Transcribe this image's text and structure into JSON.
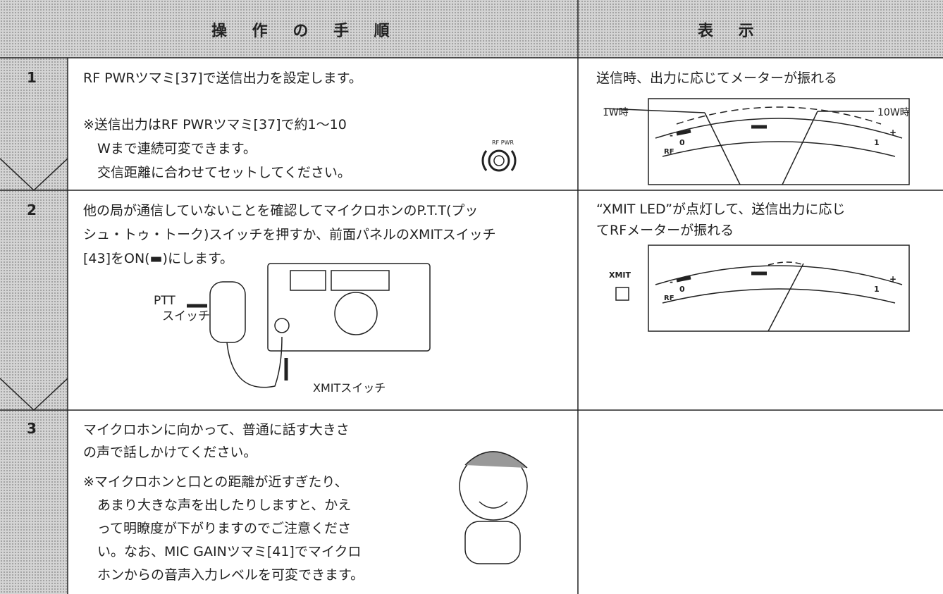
{
  "header": {
    "procedure": "操 作 の 手 順",
    "display": "表 示"
  },
  "rows": [
    {
      "number": "1",
      "instruction": [
        "RF PWRツマミ[37]で送信出力を設定します。"
      ],
      "note": [
        "※送信出力はRF PWRツマミ[37]で約1～10",
        "Wまで連続可変できます。",
        "交信距離に合わせてセットしてください。"
      ],
      "knob_label": "RF PWR",
      "display": [
        "送信時、出力に応じてメーターが振れる"
      ],
      "meter": {
        "left_label": "1W時",
        "right_label": "10W時",
        "scale_name": "RF",
        "zero": "0",
        "one": "1",
        "minus": "-",
        "plus": "+"
      }
    },
    {
      "number": "2",
      "instruction": [
        "他の局が通信していないことを確認してマイクロホンのP.T.T(プッ",
        "シュ・トゥ・トーク)スイッチを押すか、前面パネルのXMITスイッチ",
        "[43]をON(▬)にします。"
      ],
      "ptt_label": [
        "PTT",
        "スイッチ"
      ],
      "xmit_switch_label": "XMITスイッチ",
      "display": [
        "“XMIT LED”が点灯して、送信出力に応じ",
        "てRFメーターが振れる"
      ],
      "led_label": "XMIT",
      "meter": {
        "scale_name": "RF",
        "zero": "0",
        "one": "1",
        "minus": "-",
        "plus": "+"
      }
    },
    {
      "number": "3",
      "instruction": [
        "マイクロホンに向かって、普通に話す大きさ",
        "の声で話しかけてください。"
      ],
      "note": [
        "※マイクロホンと口との距離が近すぎたり、",
        "あまり大きな声を出したりしますと、かえ",
        "って明瞭度が下がりますのでご注意くださ",
        "い。なお、MIC GAINツマミ[41]でマイクロ",
        "ホンからの音声入力レベルを可変できます。"
      ]
    }
  ]
}
